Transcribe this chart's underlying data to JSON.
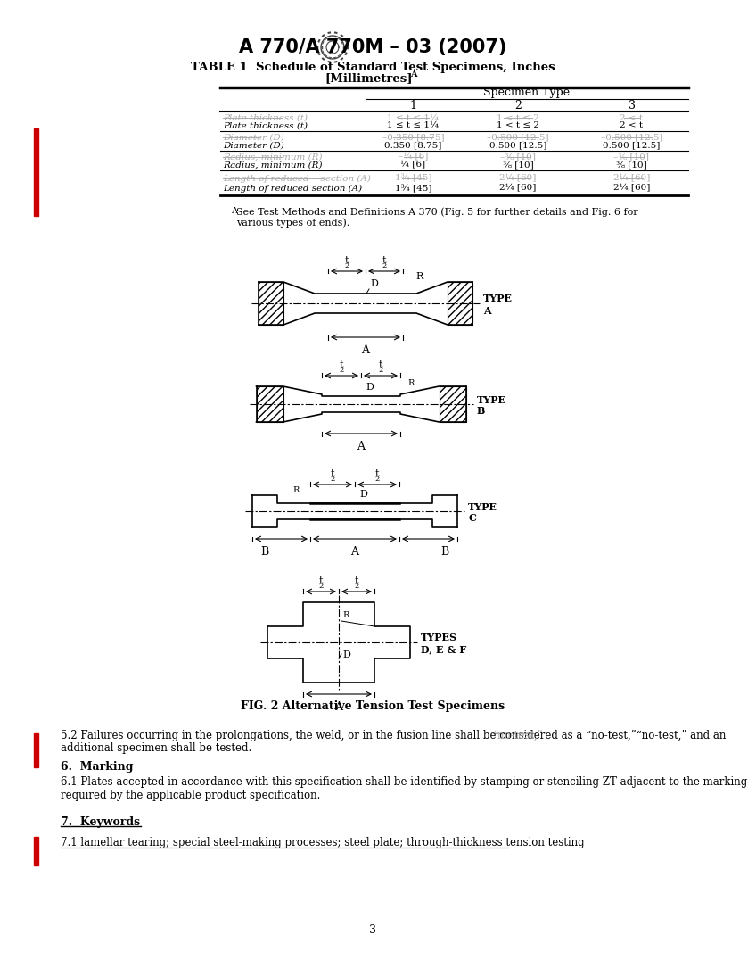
{
  "title": "A 770/A 770M – 03 (2007)",
  "table_title_line1": "TABLE 1  Schedule of Standard Test Specimens, Inches",
  "table_title_line2": "[Millimetres]",
  "table_title_superscript": "A",
  "specimen_type_header": "Specimen Type",
  "col_headers": [
    "1",
    "2",
    "3"
  ],
  "row_data": [
    {
      "label_st": "Plate thickness (t)",
      "label_cl": "Plate thickness (t)",
      "vals_st": [
        "1 ≤ t ≤ 1¼",
        "1 < t ≤ 2",
        "2 < t"
      ],
      "vals_cl": [
        "1 ≤ t ≤ 1¼",
        "1 < t ≤ 2",
        "2 < t"
      ]
    },
    {
      "label_st": "Diameter (D)",
      "label_cl": "Diameter (D)",
      "vals_st": [
        "–0.350 [8.75]",
        "–0.500 [12.5]",
        "–0.500 [12.5]"
      ],
      "vals_cl": [
        "0.350 [8.75]",
        "0.500 [12.5]",
        "0.500 [12.5]"
      ]
    },
    {
      "label_st": "Radius, minimum (R)",
      "label_cl": "Radius, minimum (R)",
      "vals_st": [
        "–¼ [6]",
        "–⅜ [10]",
        "–⅜ [10]"
      ],
      "vals_cl": [
        "¼ [6]",
        "⅜ [10]",
        "⅜ [10]"
      ]
    },
    {
      "label_st": "Length of reduced    section (A)",
      "label_cl": "Length of reduced section (A)",
      "vals_st": [
        "1¾ [45]",
        "2¼ [60]",
        "2¼ [60]"
      ],
      "vals_cl": [
        "1¾ [45]",
        "2¼ [60]",
        "2¼ [60]"
      ]
    }
  ],
  "footnote_super": "A",
  "footnote_text": "See Test Methods and Definitions A 370 (Fig. 5 for further details and Fig. 6 for\nvarious types of ends).",
  "fig_caption": "FIG. 2 Alternative Tension Test Specimens",
  "section_52_prefix": "5.2 Failures occurring in the prolongations, the weld, or in the fusion line shall be considered as a ",
  "section_52_notest_st": "“no-test,”",
  "section_52_notest_cl": "“no-test,”",
  "section_52_suffix": " and an\nadditional specimen shall be tested.",
  "section_6_title": "6.  Marking",
  "section_6_text": "6.1 Plates accepted in accordance with this specification shall be identified by stamping or stenciling ZT adjacent to the marking\nrequired by the applicable product specification.",
  "section_7_title": "7.  Keywords",
  "section_7_text": "7.1 lamellar tearing; special steel-making processes; steel plate; through-thickness tension testing",
  "page_number": "3",
  "bg_color": "#ffffff",
  "text_color": "#000000",
  "red_bar_color": "#cc0000",
  "gray_color": "#aaaaaa"
}
